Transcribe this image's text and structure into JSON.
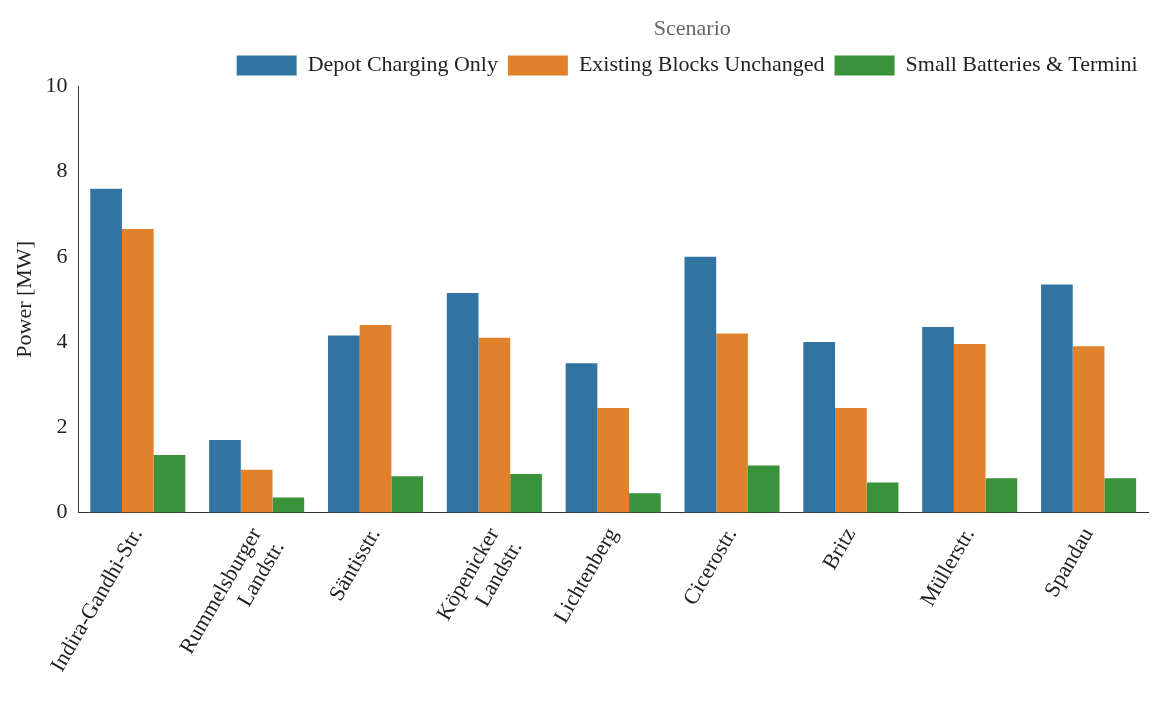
{
  "chart_data": {
    "type": "bar",
    "ylabel": "Power [MW]",
    "legend_title": "Scenario",
    "legend": "top right",
    "grid": false,
    "categories": [
      "Indira-Gandhi-Str.",
      "Rummelsburger\nLandstr.",
      "Säntisstr.",
      "Köpenicker\nLandstr.",
      "Lichtenberg",
      "Cicerostr.",
      "Britz",
      "Müllerstr.",
      "Spandau"
    ],
    "series": [
      {
        "name": "Depot Charging Only",
        "color": "#3274a1",
        "values": [
          7.6,
          1.7,
          4.15,
          5.15,
          3.5,
          6.0,
          4.0,
          4.35,
          5.35
        ]
      },
      {
        "name": "Existing Blocks Unchanged",
        "color": "#e1812c",
        "values": [
          6.65,
          1.0,
          4.4,
          4.1,
          2.45,
          4.2,
          2.45,
          3.95,
          3.9
        ]
      },
      {
        "name": "Small Batteries & Termini",
        "color": "#3a923a",
        "values": [
          1.35,
          0.35,
          0.85,
          0.9,
          0.45,
          1.1,
          0.7,
          0.8,
          0.8
        ]
      }
    ],
    "ylim": [
      0,
      10
    ],
    "yticks": [
      0,
      2,
      4,
      6,
      8,
      10
    ]
  }
}
